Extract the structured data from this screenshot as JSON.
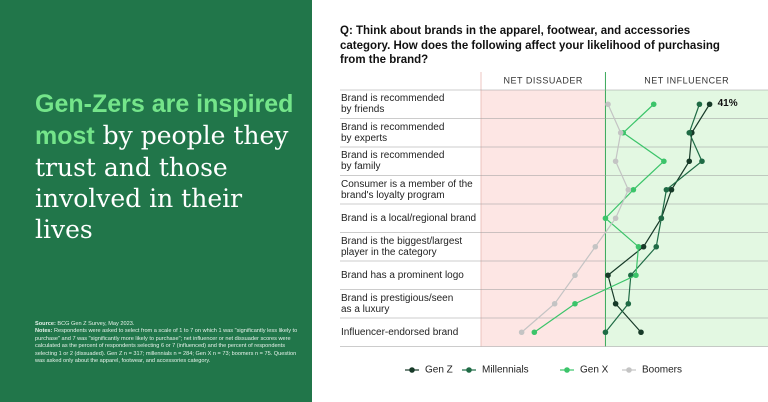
{
  "headline": {
    "highlight": "Gen-Zers are inspired most",
    "rest": " by people they trust and those involved in their lives"
  },
  "notes": {
    "source_label": "Source:",
    "source": " BCG Gen Z Survey, May 2023.",
    "notes_label": "Notes:",
    "notes": " Respondents were asked to select from a scale of 1 to 7 on which 1 was \"significantly less likely to purchase\" and 7 was \"significantly more likely to purchase\"; net influencer or net dissuader scores were calculated as the percent of respondents selecting 6 or 7 (influenced) and the percent of respondents selecting 1 or 2 (dissuaded). Gen Z n = 317; millennials n = 284; Gen X n = 73; boomers n = 75. Question was asked only about the apparel, footwear, and accessories category."
  },
  "chart_data": {
    "type": "dot-line",
    "title": "Q: Think about brands in the apparel, footwear, and accessories category. How does the following affect your likelihood of purchasing from the brand?",
    "zone_labels": [
      "NET DISSUADER",
      "NET INFLUENCER"
    ],
    "categories": [
      "Brand is recommended\nby friends",
      "Brand is recommended\nby experts",
      "Brand is recommended\nby family",
      "Consumer is a member of the\nbrand's loyalty program",
      "Brand is a local/regional brand",
      "Brand is the biggest/largest\nplayer in the category",
      "Brand has a prominent logo",
      "Brand is prestigious/seen\nas a luxury",
      "Influencer-endorsed brand"
    ],
    "xlim": [
      -49,
      64
    ],
    "series": [
      {
        "name": "Gen Z",
        "color": "#173a28",
        "values": [
          41,
          34,
          33,
          26,
          22,
          15,
          1,
          4,
          14
        ],
        "value_labels": [
          "41%",
          null,
          null,
          null,
          null,
          null,
          null,
          null,
          null
        ]
      },
      {
        "name": "Millennials",
        "color": "#1f6b45",
        "values": [
          37,
          33,
          38,
          24,
          22,
          20,
          10,
          9,
          0
        ]
      },
      {
        "name": "Gen X",
        "color": "#3cc46a",
        "values": [
          19,
          7,
          23,
          11,
          0,
          13,
          12,
          -12,
          -28
        ]
      },
      {
        "name": "Boomers",
        "color": "#c4c4c4",
        "values": [
          1,
          6,
          4,
          9,
          4,
          -4,
          -12,
          -20,
          -33
        ]
      }
    ]
  }
}
